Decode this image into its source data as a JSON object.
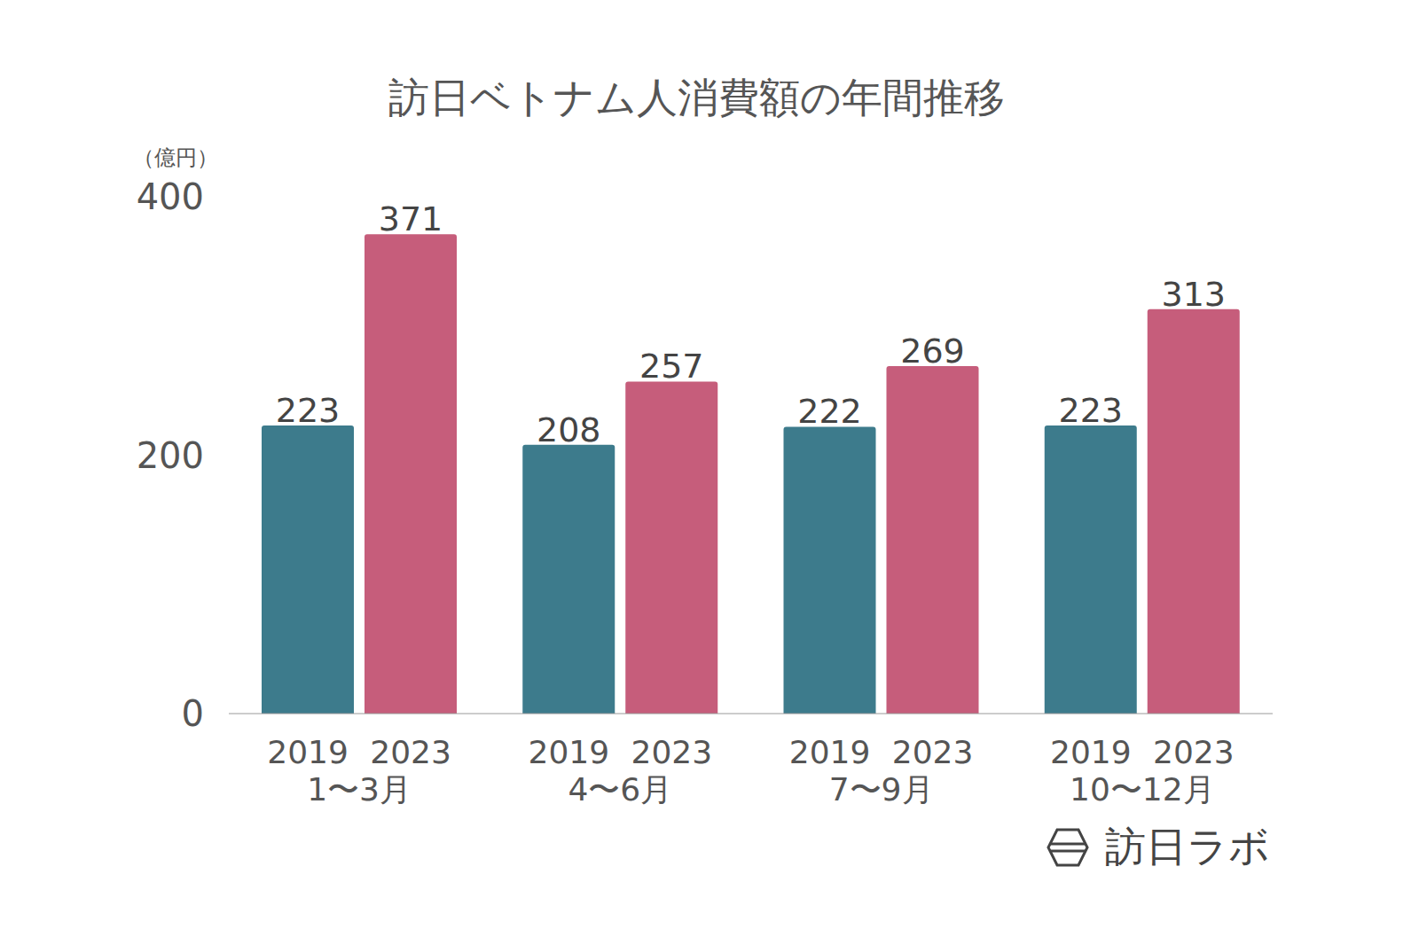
{
  "chart_data": {
    "type": "bar",
    "title": "訪日ベトナム人消費額の年間推移",
    "y_label": "（億円）",
    "annotations": [
      "訪日ラボ"
    ],
    "categories": [
      "1〜3月",
      "4〜6月",
      "7〜9月",
      "10〜12月"
    ],
    "series": [
      {
        "name": "2019",
        "color": "#3d7b8c",
        "values": [
          223,
          208,
          222,
          223
        ]
      },
      {
        "name": "2023",
        "color": "#c65d7b",
        "values": [
          371,
          257,
          269,
          313
        ]
      }
    ],
    "ylim": [
      0,
      400
    ],
    "yticks": [
      0,
      200,
      400
    ],
    "grid": false,
    "data_labels": true
  }
}
